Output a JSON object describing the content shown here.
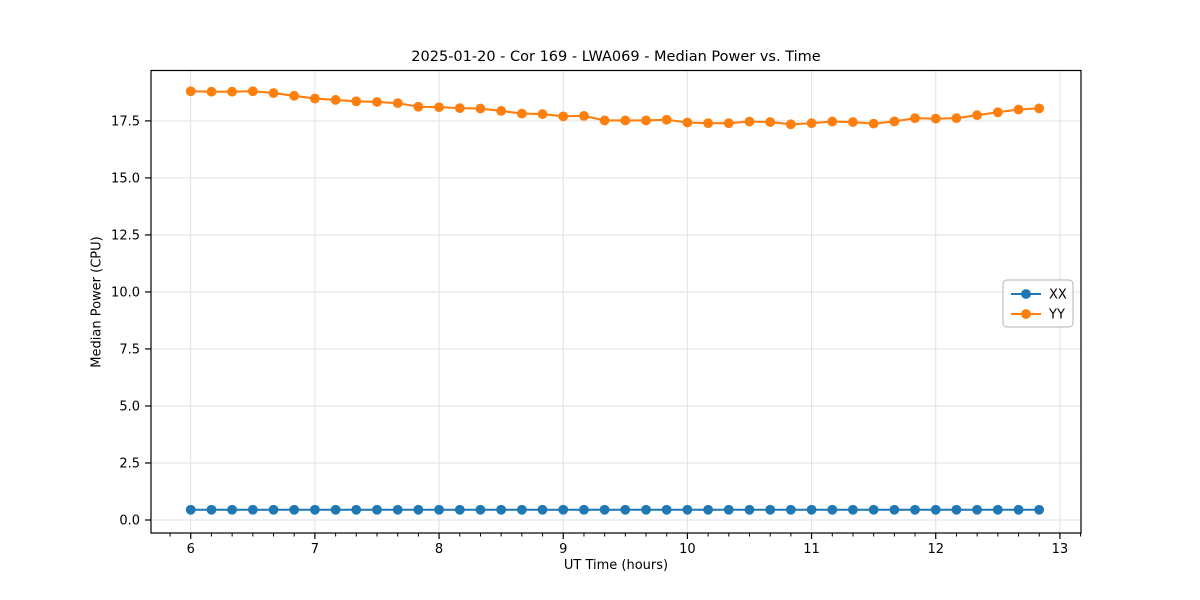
{
  "figure": {
    "title": "2025-01-20 - Cor 169 - LWA069 - Median Power vs. Time",
    "background_color": "#ffffff",
    "spine_color": "#000000",
    "grid_color": "#e2e2e2",
    "legend_border_color": "#b3b3b3"
  },
  "chart_data": {
    "type": "line",
    "title": "2025-01-20 - Cor 169 - LWA069 - Median Power vs. Time",
    "xlabel": "UT Time (hours)",
    "ylabel": "Median Power (CPU)",
    "xlim": [
      5.68,
      13.17
    ],
    "ylim": [
      -0.57,
      19.71
    ],
    "xticks": [
      6,
      7,
      8,
      9,
      10,
      11,
      12,
      13
    ],
    "xtick_labels": [
      "6",
      "7",
      "8",
      "9",
      "10",
      "11",
      "12",
      "13"
    ],
    "yticks": [
      0.0,
      2.5,
      5.0,
      7.5,
      10.0,
      12.5,
      15.0,
      17.5
    ],
    "ytick_labels": [
      "0.0",
      "2.5",
      "5.0",
      "7.5",
      "10.0",
      "12.5",
      "15.0",
      "17.5"
    ],
    "minor_xtick_step": 0.16667,
    "grid": true,
    "legend_position": "center right",
    "x": [
      6.0,
      6.167,
      6.333,
      6.5,
      6.667,
      6.833,
      7.0,
      7.167,
      7.333,
      7.5,
      7.667,
      7.833,
      8.0,
      8.167,
      8.333,
      8.5,
      8.667,
      8.833,
      9.0,
      9.167,
      9.333,
      9.5,
      9.667,
      9.833,
      10.0,
      10.167,
      10.333,
      10.5,
      10.667,
      10.833,
      11.0,
      11.167,
      11.333,
      11.5,
      11.667,
      11.833,
      12.0,
      12.167,
      12.333,
      12.5,
      12.667,
      12.833
    ],
    "series": [
      {
        "name": "XX",
        "color": "#1f77b4",
        "values": [
          0.45,
          0.45,
          0.45,
          0.45,
          0.45,
          0.45,
          0.45,
          0.45,
          0.45,
          0.45,
          0.45,
          0.45,
          0.45,
          0.45,
          0.45,
          0.45,
          0.45,
          0.45,
          0.45,
          0.45,
          0.45,
          0.45,
          0.45,
          0.45,
          0.45,
          0.45,
          0.45,
          0.45,
          0.45,
          0.45,
          0.45,
          0.45,
          0.45,
          0.45,
          0.45,
          0.45,
          0.45,
          0.45,
          0.45,
          0.45,
          0.45,
          0.45
        ]
      },
      {
        "name": "YY",
        "color": "#ff7f0e",
        "values": [
          18.8,
          18.78,
          18.78,
          18.8,
          18.72,
          18.6,
          18.48,
          18.42,
          18.36,
          18.33,
          18.28,
          18.12,
          18.1,
          18.06,
          18.04,
          17.94,
          17.82,
          17.8,
          17.7,
          17.72,
          17.52,
          17.52,
          17.52,
          17.55,
          17.43,
          17.4,
          17.4,
          17.47,
          17.45,
          17.35,
          17.4,
          17.47,
          17.45,
          17.38,
          17.48,
          17.62,
          17.6,
          17.62,
          17.75,
          17.88,
          18.0,
          18.05
        ]
      }
    ]
  }
}
